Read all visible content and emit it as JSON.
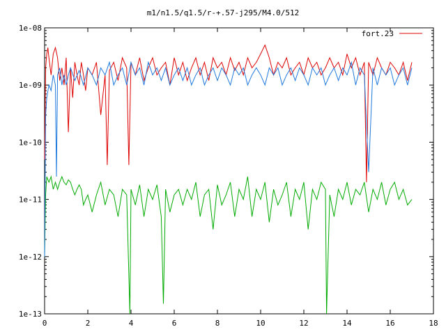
{
  "chart_data": {
    "type": "line",
    "title": "m1/n1.5/q1.5/r-+.57-j295/M4.0/512",
    "xlabel": "",
    "ylabel": "",
    "xlim": [
      0,
      18
    ],
    "ylim": [
      1e-13,
      1e-08
    ],
    "y_scale": "log",
    "grid": false,
    "legend_position": "top-right",
    "x_ticks": [
      "0",
      "2",
      "4",
      "6",
      "8",
      "10",
      "12",
      "14",
      "16",
      "18"
    ],
    "y_ticks": [
      "1e-08",
      "1e-09",
      "1e-10",
      "1e-11",
      "1e-12",
      "1e-13"
    ],
    "series": [
      {
        "name": "fort.23",
        "color": "#dd0000",
        "x": [
          0.0,
          0.05,
          0.1,
          0.15,
          0.2,
          0.3,
          0.4,
          0.5,
          0.6,
          0.7,
          0.8,
          0.9,
          1.0,
          1.1,
          1.2,
          1.3,
          1.4,
          1.5,
          1.6,
          1.7,
          1.8,
          1.9,
          2.0,
          2.2,
          2.4,
          2.6,
          2.8,
          2.9,
          3.0,
          3.2,
          3.4,
          3.6,
          3.8,
          3.9,
          4.0,
          4.2,
          4.4,
          4.6,
          4.8,
          5.0,
          5.2,
          5.4,
          5.6,
          5.8,
          6.0,
          6.2,
          6.4,
          6.6,
          6.8,
          7.0,
          7.2,
          7.4,
          7.6,
          7.8,
          8.0,
          8.2,
          8.4,
          8.6,
          8.8,
          9.0,
          9.2,
          9.4,
          9.6,
          9.8,
          10.0,
          10.2,
          10.4,
          10.6,
          10.8,
          11.0,
          11.2,
          11.4,
          11.6,
          11.8,
          12.0,
          12.2,
          12.4,
          12.6,
          12.8,
          13.0,
          13.2,
          13.4,
          13.6,
          13.8,
          14.0,
          14.2,
          14.4,
          14.6,
          14.8,
          14.9,
          15.0,
          15.2,
          15.4,
          15.6,
          15.8,
          16.0,
          16.2,
          16.4,
          16.6,
          16.8,
          17.0
        ],
        "y": [
          5e-11,
          2e-09,
          3.5e-09,
          4.5e-09,
          3e-09,
          1.5e-09,
          3.5e-09,
          4.5e-09,
          3e-09,
          1.2e-09,
          2e-09,
          1e-09,
          3e-09,
          1.5e-10,
          2e-09,
          6e-10,
          2.5e-09,
          1.5e-09,
          1e-09,
          2.5e-09,
          1.5e-09,
          8e-10,
          2e-09,
          1.5e-09,
          2.5e-09,
          3e-10,
          1.5e-09,
          4e-11,
          1.8e-09,
          2.5e-09,
          1.2e-09,
          3e-09,
          2e-09,
          4e-11,
          2.5e-09,
          1.5e-09,
          3e-09,
          1.2e-09,
          2e-09,
          3e-09,
          1.5e-09,
          2e-09,
          2.5e-09,
          1e-09,
          3e-09,
          1.5e-09,
          2.5e-09,
          1.2e-09,
          2e-09,
          3e-09,
          1.5e-09,
          2.5e-09,
          1.2e-09,
          3e-09,
          2e-09,
          2.5e-09,
          1.5e-09,
          3e-09,
          1.8e-09,
          2.5e-09,
          1.5e-09,
          3e-09,
          2e-09,
          2.5e-09,
          3.5e-09,
          5e-09,
          3e-09,
          1.5e-09,
          2.5e-09,
          2e-09,
          3e-09,
          1.5e-09,
          2e-09,
          2.5e-09,
          1.5e-09,
          3e-09,
          2e-09,
          2.5e-09,
          1.5e-09,
          2e-09,
          3e-09,
          2e-09,
          2.5e-09,
          1.5e-09,
          3.5e-09,
          2e-09,
          3e-09,
          1.5e-09,
          2.5e-09,
          2e-11,
          2.5e-09,
          1.5e-09,
          3e-09,
          2e-09,
          1.5e-09,
          2.5e-09,
          2e-09,
          1.5e-09,
          2.5e-09,
          1.2e-09,
          2.5e-09
        ]
      },
      {
        "color": "#1e78dc",
        "x": [
          0.0,
          0.05,
          0.1,
          0.2,
          0.3,
          0.4,
          0.5,
          0.55,
          0.6,
          0.7,
          0.8,
          0.9,
          1.0,
          1.1,
          1.2,
          1.4,
          1.6,
          1.8,
          2.0,
          2.2,
          2.4,
          2.6,
          2.8,
          3.0,
          3.2,
          3.4,
          3.6,
          3.8,
          4.0,
          4.2,
          4.4,
          4.6,
          4.8,
          5.0,
          5.2,
          5.4,
          5.6,
          5.8,
          6.0,
          6.2,
          6.4,
          6.6,
          6.8,
          7.0,
          7.2,
          7.4,
          7.6,
          7.8,
          8.0,
          8.2,
          8.4,
          8.6,
          8.8,
          9.0,
          9.2,
          9.4,
          9.6,
          9.8,
          10.0,
          10.2,
          10.4,
          10.6,
          10.8,
          11.0,
          11.2,
          11.4,
          11.6,
          11.8,
          12.0,
          12.2,
          12.4,
          12.6,
          12.8,
          13.0,
          13.2,
          13.4,
          13.6,
          13.8,
          14.0,
          14.2,
          14.4,
          14.6,
          14.8,
          15.0,
          15.2,
          15.4,
          15.6,
          15.8,
          16.0,
          16.2,
          16.4,
          16.6,
          16.8,
          17.0
        ],
        "y": [
          1e-12,
          3e-10,
          6e-10,
          1e-09,
          8e-10,
          1.5e-09,
          1e-09,
          2.5e-11,
          1.5e-09,
          2e-09,
          1e-09,
          1.5e-09,
          1e-09,
          1.5e-09,
          2e-09,
          1.2e-09,
          1.8e-09,
          1e-09,
          2e-09,
          1.5e-09,
          1e-09,
          2e-09,
          1.5e-09,
          2.5e-09,
          1e-09,
          1.5e-09,
          2e-09,
          1e-09,
          2.5e-09,
          1.5e-09,
          2e-09,
          1e-09,
          2.5e-09,
          1.5e-09,
          2e-09,
          1.2e-09,
          2e-09,
          1e-09,
          1.5e-09,
          2e-09,
          1.2e-09,
          2e-09,
          1e-09,
          1.5e-09,
          2e-09,
          1e-09,
          1.5e-09,
          2e-09,
          1.2e-09,
          2e-09,
          1.5e-09,
          1e-09,
          2e-09,
          1.5e-09,
          2e-09,
          1e-09,
          1.5e-09,
          2e-09,
          1.5e-09,
          1e-09,
          2e-09,
          1.5e-09,
          2e-09,
          1e-09,
          1.5e-09,
          2e-09,
          1.2e-09,
          2e-09,
          1.5e-09,
          1e-09,
          2e-09,
          1.5e-09,
          2e-09,
          1e-09,
          1.5e-09,
          2e-09,
          1.2e-09,
          2e-09,
          1.5e-09,
          2.5e-09,
          1e-09,
          2e-09,
          1.5e-09,
          3e-11,
          2e-09,
          1e-09,
          2e-09,
          1.5e-09,
          2e-09,
          1e-09,
          1.5e-09,
          2e-09,
          1e-09,
          2e-09
        ]
      },
      {
        "color": "#00aa00",
        "x": [
          0.0,
          0.05,
          0.1,
          0.2,
          0.3,
          0.4,
          0.5,
          0.6,
          0.7,
          0.8,
          0.9,
          1.0,
          1.1,
          1.2,
          1.3,
          1.4,
          1.5,
          1.6,
          1.7,
          1.8,
          1.9,
          2.0,
          2.2,
          2.4,
          2.6,
          2.8,
          3.0,
          3.2,
          3.4,
          3.6,
          3.8,
          3.95,
          4.0,
          4.2,
          4.4,
          4.6,
          4.8,
          5.0,
          5.2,
          5.4,
          5.5,
          5.6,
          5.8,
          6.0,
          6.2,
          6.4,
          6.6,
          6.8,
          7.0,
          7.2,
          7.4,
          7.6,
          7.8,
          8.0,
          8.2,
          8.4,
          8.6,
          8.8,
          9.0,
          9.2,
          9.4,
          9.6,
          9.8,
          10.0,
          10.2,
          10.4,
          10.6,
          10.8,
          11.0,
          11.2,
          11.4,
          11.6,
          11.8,
          12.0,
          12.2,
          12.4,
          12.6,
          12.8,
          13.0,
          13.05,
          13.2,
          13.4,
          13.6,
          13.8,
          14.0,
          14.2,
          14.4,
          14.6,
          14.8,
          15.0,
          15.2,
          15.4,
          15.6,
          15.8,
          16.0,
          16.2,
          16.4,
          16.6,
          16.8,
          17.0
        ],
        "y": [
          1e-12,
          1.2e-11,
          2.5e-11,
          2e-11,
          2.5e-11,
          1.5e-11,
          2e-11,
          1.5e-11,
          2e-11,
          2.5e-11,
          2e-11,
          1.8e-11,
          2.2e-11,
          2e-11,
          1.5e-11,
          1.2e-11,
          1.5e-11,
          1.8e-11,
          1.5e-11,
          8e-12,
          1e-11,
          1.2e-11,
          6e-12,
          1.2e-11,
          2e-11,
          8e-12,
          1.5e-11,
          1.2e-11,
          5e-12,
          1.5e-11,
          1.2e-11,
          1e-13,
          1.5e-11,
          8e-12,
          1.8e-11,
          5e-12,
          1.5e-11,
          1e-11,
          1.8e-11,
          5e-12,
          1.5e-13,
          1.5e-11,
          6e-12,
          1.2e-11,
          1.5e-11,
          8e-12,
          1.5e-11,
          1e-11,
          2e-11,
          5e-12,
          1.2e-11,
          1.5e-11,
          3e-12,
          1.8e-11,
          8e-12,
          1.2e-11,
          2e-11,
          5e-12,
          1.5e-11,
          1e-11,
          2.5e-11,
          5e-12,
          1.5e-11,
          1e-11,
          2e-11,
          4e-12,
          1.5e-11,
          8e-12,
          1.2e-11,
          2e-11,
          5e-12,
          1.5e-11,
          1e-11,
          2e-11,
          3e-12,
          1.5e-11,
          1e-11,
          2e-11,
          1.5e-11,
          1e-13,
          1.2e-11,
          5e-12,
          1.5e-11,
          1e-11,
          2e-11,
          8e-12,
          1.5e-11,
          1.2e-11,
          2e-11,
          6e-12,
          1.5e-11,
          1e-11,
          2e-11,
          8e-12,
          1.5e-11,
          2e-11,
          1e-11,
          1.5e-11,
          8e-12,
          1e-11
        ]
      }
    ]
  }
}
